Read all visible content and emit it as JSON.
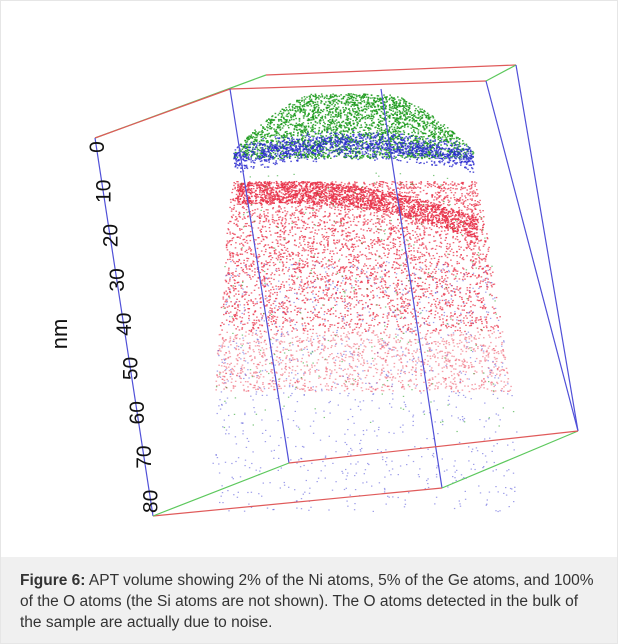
{
  "figure": {
    "axis_label": "nm",
    "ticks": [
      "0",
      "10",
      "20",
      "30",
      "40",
      "50",
      "60",
      "70",
      "80"
    ],
    "colors": {
      "ni_atoms": "#1a9a1a",
      "ge_atoms": "#2a2ad0",
      "o_atoms": "#e8334a",
      "box_red": "#e05a5a",
      "box_green": "#5cc85c",
      "box_blue": "#5050d8",
      "caption_bg": "#f0f0f0"
    }
  },
  "caption": {
    "label": "Figure 6:",
    "text": " APT volume showing 2% of the Ni atoms, 5% of the Ge atoms, and 100% of the O atoms (the Si atoms are not shown). The O atoms detected in the bulk of the sample are actually due to noise."
  }
}
